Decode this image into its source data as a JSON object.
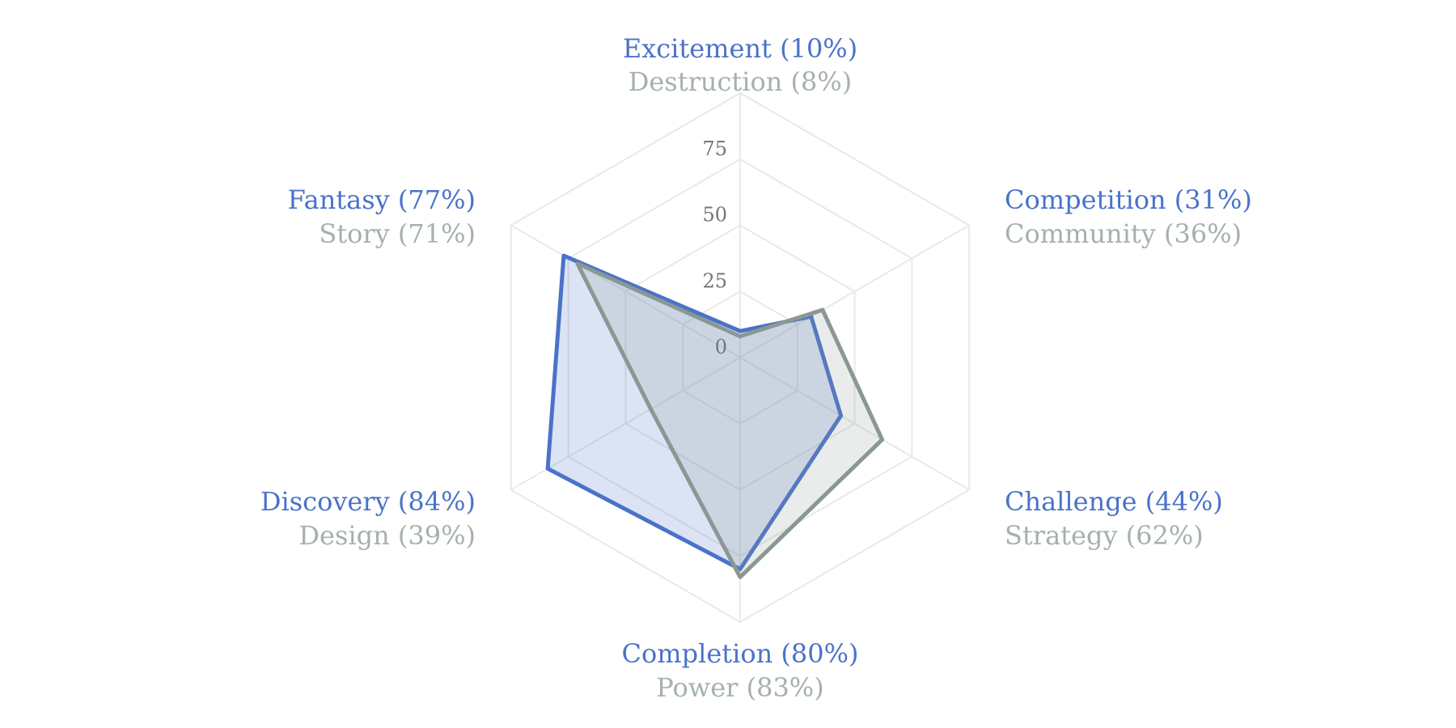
{
  "chart_data": {
    "type": "radar",
    "title": "",
    "background": "#ffffff",
    "radial_axis": {
      "range": [
        0,
        100
      ],
      "ticks": [
        0,
        25,
        50,
        75
      ],
      "grid_on": true,
      "grid_color": "#e9e9e9",
      "tick_label_color": "#757575"
    },
    "label_format": "{axis} ({value}%)",
    "series": [
      {
        "name": "primary-blue",
        "line_color": "#4a72c9",
        "fill_color": "rgba(74,114,200,0.20)",
        "label_color": "#4a72c9",
        "points": [
          {
            "axis": "Excitement",
            "value": 10
          },
          {
            "axis": "Competition",
            "value": 31
          },
          {
            "axis": "Challenge",
            "value": 44
          },
          {
            "axis": "Completion",
            "value": 80
          },
          {
            "axis": "Discovery",
            "value": 84
          },
          {
            "axis": "Fantasy",
            "value": 77
          }
        ]
      },
      {
        "name": "secondary-gray",
        "line_color": "#8a9894",
        "fill_color": "rgba(138,152,148,0.19)",
        "label_color": "#a4b1ae",
        "points": [
          {
            "axis": "Destruction",
            "value": 8
          },
          {
            "axis": "Community",
            "value": 36
          },
          {
            "axis": "Strategy",
            "value": 62
          },
          {
            "axis": "Power",
            "value": 83
          },
          {
            "axis": "Design",
            "value": 39
          },
          {
            "axis": "Story",
            "value": 71
          }
        ]
      }
    ]
  }
}
